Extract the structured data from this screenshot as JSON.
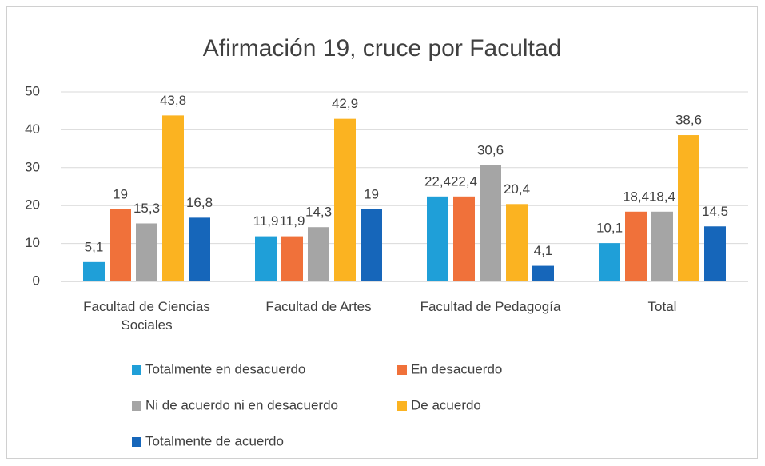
{
  "chart_data": {
    "type": "bar",
    "title": "Afirmación 19, cruce por Facultad",
    "categories": [
      "Facultad de Ciencias Sociales",
      "Facultad de Artes",
      "Facultad de Pedagogía",
      "Total"
    ],
    "series": [
      {
        "name": "Totalmente en desacuerdo",
        "color": "#1f9fd8",
        "values": [
          5.1,
          11.9,
          22.4,
          10.1
        ],
        "value_labels": [
          "5,1",
          "11,9",
          "22,4",
          "10,1"
        ]
      },
      {
        "name": "En desacuerdo",
        "color": "#f0713a",
        "values": [
          19,
          11.9,
          22.4,
          18.4
        ],
        "value_labels": [
          "19",
          "11,9",
          "22,4",
          "18,4"
        ]
      },
      {
        "name": "Ni de acuerdo ni en desacuerdo",
        "color": "#a5a5a5",
        "values": [
          15.3,
          14.3,
          30.6,
          18.4
        ],
        "value_labels": [
          "15,3",
          "14,3",
          "30,6",
          "18,4"
        ]
      },
      {
        "name": "De acuerdo",
        "color": "#fbb321",
        "values": [
          43.8,
          42.9,
          20.4,
          38.6
        ],
        "value_labels": [
          "43,8",
          "42,9",
          "20,4",
          "38,6"
        ]
      },
      {
        "name": "Totalmente de acuerdo",
        "color": "#1666ba",
        "values": [
          16.8,
          19,
          4.1,
          14.5
        ],
        "value_labels": [
          "16,8",
          "19",
          "4,1",
          "14,5"
        ]
      }
    ],
    "ylim": [
      0,
      50
    ],
    "yticks": [
      0,
      10,
      20,
      30,
      40,
      50
    ],
    "grid": true,
    "legend": "bottom"
  }
}
